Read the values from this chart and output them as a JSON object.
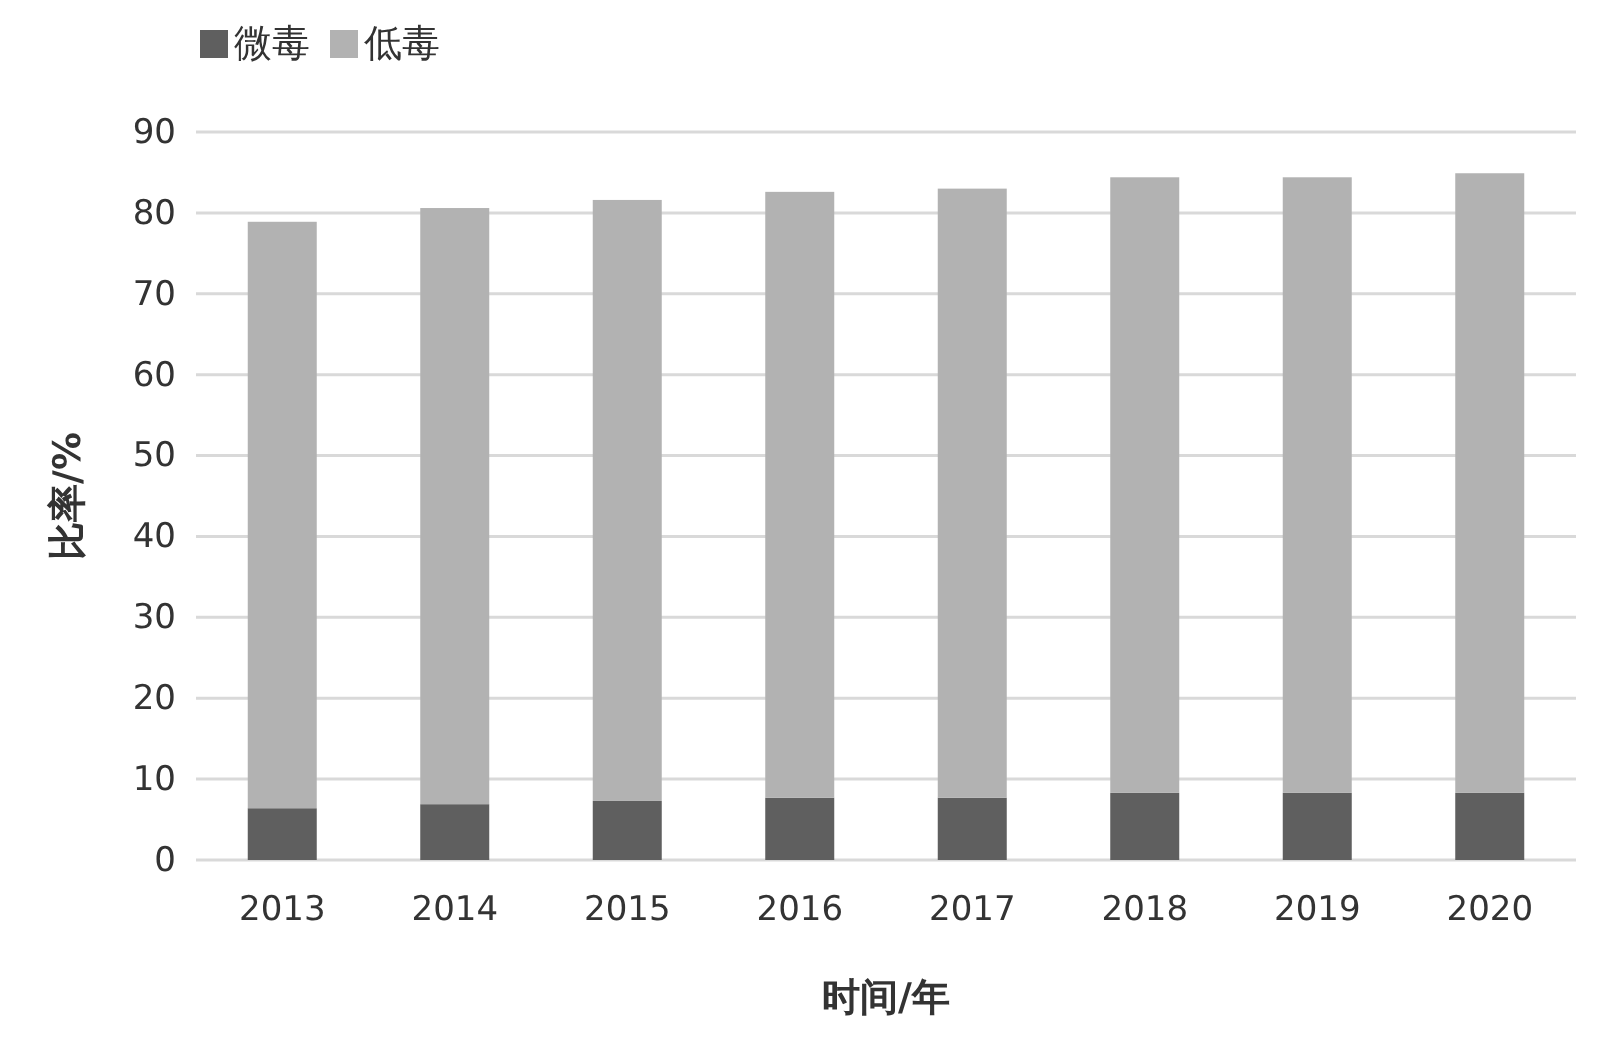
{
  "chart_data": {
    "type": "bar",
    "stacked": true,
    "xlabel": "时间/年",
    "ylabel": "比率/%",
    "categories": [
      "2013",
      "2014",
      "2015",
      "2016",
      "2017",
      "2018",
      "2019",
      "2020"
    ],
    "series": [
      {
        "name": "微毒",
        "color": "#5f5f5f",
        "values": [
          6.4,
          6.9,
          7.3,
          7.7,
          7.7,
          8.3,
          8.3,
          8.3
        ]
      },
      {
        "name": "低毒",
        "color": "#b2b2b2",
        "values": [
          72.5,
          73.7,
          74.3,
          74.9,
          75.3,
          76.1,
          76.1,
          76.6
        ]
      }
    ],
    "ylim": [
      0,
      90
    ],
    "yticks": [
      0,
      10,
      20,
      30,
      40,
      50,
      60,
      70,
      80,
      90
    ],
    "grid": "y",
    "legend": "top left"
  }
}
